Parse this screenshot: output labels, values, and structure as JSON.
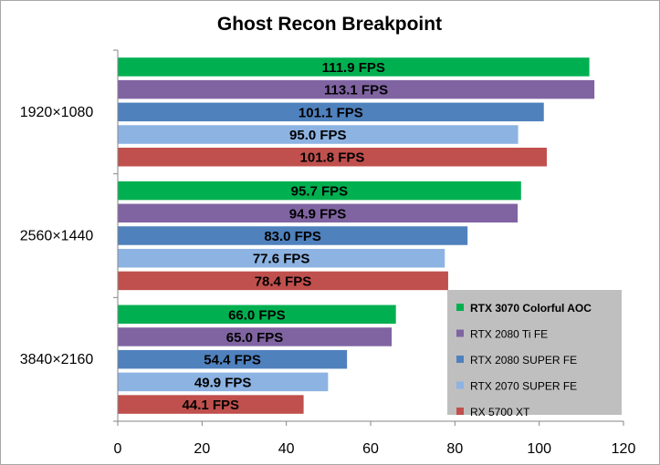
{
  "chart_data": {
    "type": "bar",
    "orientation": "horizontal",
    "title": "Ghost Recon Breakpoint",
    "xlabel": "",
    "ylabel": "",
    "xlim": [
      0,
      120
    ],
    "xticks": [
      0,
      20,
      40,
      60,
      80,
      100,
      120
    ],
    "grid": false,
    "legend_position": "bottom-right",
    "categories": [
      "1920×1080",
      "2560×1440",
      "3840×2160"
    ],
    "series": [
      {
        "name": "RTX 3070 Colorful AOC",
        "color": "#00b050",
        "values": [
          111.9,
          95.7,
          66.0
        ],
        "labels": [
          "111.9 FPS",
          "95.7 FPS",
          "66.0 FPS"
        ],
        "legend_bold": true
      },
      {
        "name": "RTX 2080 Ti FE",
        "color": "#8064a2",
        "values": [
          113.1,
          94.9,
          65.0
        ],
        "labels": [
          "113.1 FPS",
          "94.9 FPS",
          "65.0 FPS"
        ],
        "legend_bold": false
      },
      {
        "name": "RTX 2080 SUPER FE",
        "color": "#4f81bd",
        "values": [
          101.1,
          83.0,
          54.4
        ],
        "labels": [
          "101.1 FPS",
          "83.0 FPS",
          "54.4 FPS"
        ],
        "legend_bold": false
      },
      {
        "name": "RTX 2070 SUPER FE",
        "color": "#8db3e2",
        "values": [
          95.0,
          77.6,
          49.9
        ],
        "labels": [
          "95.0 FPS",
          "77.6 FPS",
          "49.9 FPS"
        ],
        "legend_bold": false
      },
      {
        "name": "RX 5700 XT",
        "color": "#c0504d",
        "values": [
          101.8,
          78.4,
          44.1
        ],
        "labels": [
          "101.8 FPS",
          "78.4 FPS",
          "44.1 FPS"
        ],
        "legend_bold": false
      }
    ]
  }
}
